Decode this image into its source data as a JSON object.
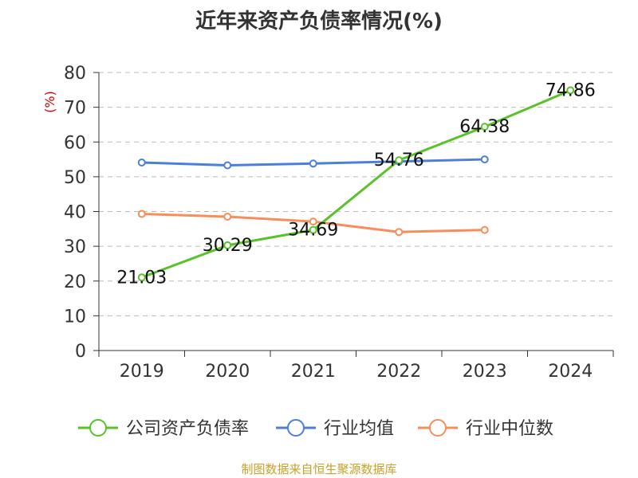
{
  "chart_data": {
    "type": "line",
    "title": "近年来资产负债率情况(%)",
    "ylabel": "(%)",
    "xlabel": "",
    "ylim": [
      0,
      80
    ],
    "yticks": [
      0,
      10,
      20,
      30,
      40,
      50,
      60,
      70,
      80
    ],
    "grid": true,
    "legend_position": "bottom",
    "categories": [
      "2019",
      "2020",
      "2021",
      "2022",
      "2023",
      "2024"
    ],
    "series": [
      {
        "name": "公司资产负债率",
        "color": "#5ac229",
        "values": [
          21.03,
          30.29,
          34.69,
          54.76,
          64.38,
          74.86
        ],
        "data_labels": [
          "21.03",
          "30.29",
          "34.69",
          "54.76",
          "64.38",
          "74.86"
        ]
      },
      {
        "name": "行业均值",
        "color": "#4b7fdb",
        "values": [
          54.1,
          53.3,
          53.8,
          54.4,
          55.0,
          null
        ]
      },
      {
        "name": "行业中位数",
        "color": "#f78d5a",
        "values": [
          39.3,
          38.5,
          37.1,
          34.1,
          34.7,
          null
        ]
      }
    ]
  },
  "source": "制图数据来自恒生聚源数据库",
  "colors": {
    "axis": "#333333",
    "grid": "#bbbbbb",
    "ylabel": "#cc0000",
    "source": "#c8a02a"
  }
}
